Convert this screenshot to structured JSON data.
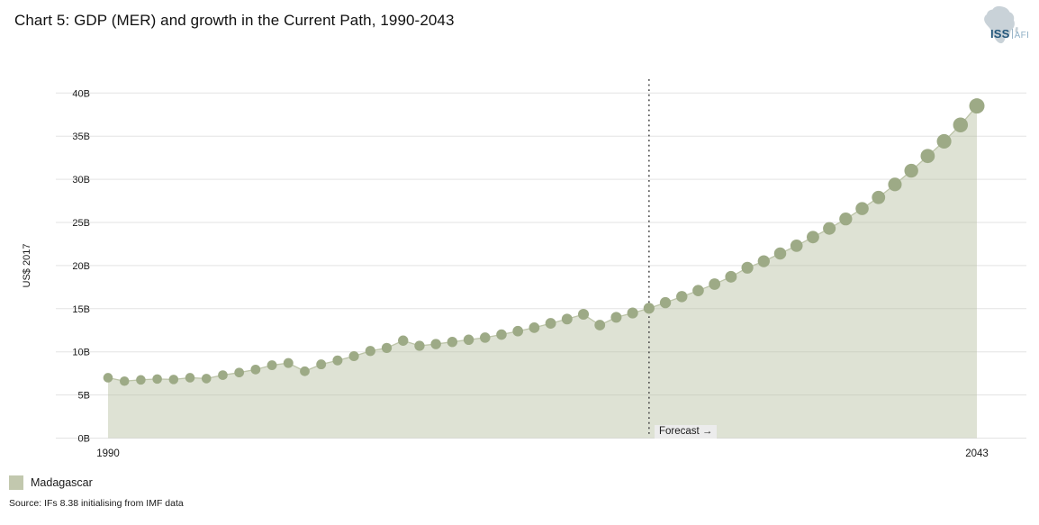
{
  "title": "Chart 5: GDP (MER) and growth in the Current Path, 1990-2043",
  "logo": {
    "iss": "ISS",
    "afi": "AFI"
  },
  "axis": {
    "y_label": "US$ 2017",
    "y_ticks": [
      "0B",
      "5B",
      "10B",
      "15B",
      "20B",
      "25B",
      "30B",
      "35B",
      "40B"
    ],
    "x_ticks": [
      "1990",
      "2043"
    ]
  },
  "forecast": {
    "label": "Forecast →",
    "year": 2023
  },
  "legend": {
    "label": "Madagascar"
  },
  "source": "Source: IFs 8.38 initialising from IMF data",
  "colors": {
    "dot": "#9daa86",
    "area_fill": "rgba(177,187,152,0.42)",
    "area_edge": "#bcc4a8",
    "grid": "#e3e3e3",
    "forecast_line": "#4d4d4d",
    "legend_swatch": "#c2c8ae",
    "tick_text": "#1a1a1a"
  },
  "chart_data": {
    "type": "area",
    "title": "Chart 5: GDP (MER) and growth in the Current Path, 1990-2043",
    "xlabel": "",
    "ylabel": "US$ 2017",
    "ylim": [
      0,
      40
    ],
    "x_range": [
      1990,
      2043
    ],
    "forecast_start": 2023,
    "grid": true,
    "legend_position": "bottom-left",
    "series": [
      {
        "name": "Madagascar",
        "x": [
          1990,
          1991,
          1992,
          1993,
          1994,
          1995,
          1996,
          1997,
          1998,
          1999,
          2000,
          2001,
          2002,
          2003,
          2004,
          2005,
          2006,
          2007,
          2008,
          2009,
          2010,
          2011,
          2012,
          2013,
          2014,
          2015,
          2016,
          2017,
          2018,
          2019,
          2020,
          2021,
          2022,
          2023,
          2024,
          2025,
          2026,
          2027,
          2028,
          2029,
          2030,
          2031,
          2032,
          2033,
          2034,
          2035,
          2036,
          2037,
          2038,
          2039,
          2040,
          2041,
          2042,
          2043
        ],
        "values": [
          7.0,
          6.6,
          6.75,
          6.85,
          6.8,
          7.0,
          6.9,
          7.3,
          7.6,
          7.95,
          8.45,
          8.7,
          7.75,
          8.55,
          9.0,
          9.5,
          10.1,
          10.45,
          11.3,
          10.7,
          10.9,
          11.15,
          11.4,
          11.65,
          12.0,
          12.4,
          12.8,
          13.3,
          13.8,
          14.35,
          13.1,
          14.0,
          14.5,
          15.05,
          15.7,
          16.4,
          17.1,
          17.85,
          18.7,
          19.75,
          20.5,
          21.4,
          22.3,
          23.3,
          24.3,
          25.4,
          26.6,
          27.9,
          29.4,
          31.0,
          32.7,
          34.4,
          36.3,
          38.5
        ]
      }
    ]
  }
}
